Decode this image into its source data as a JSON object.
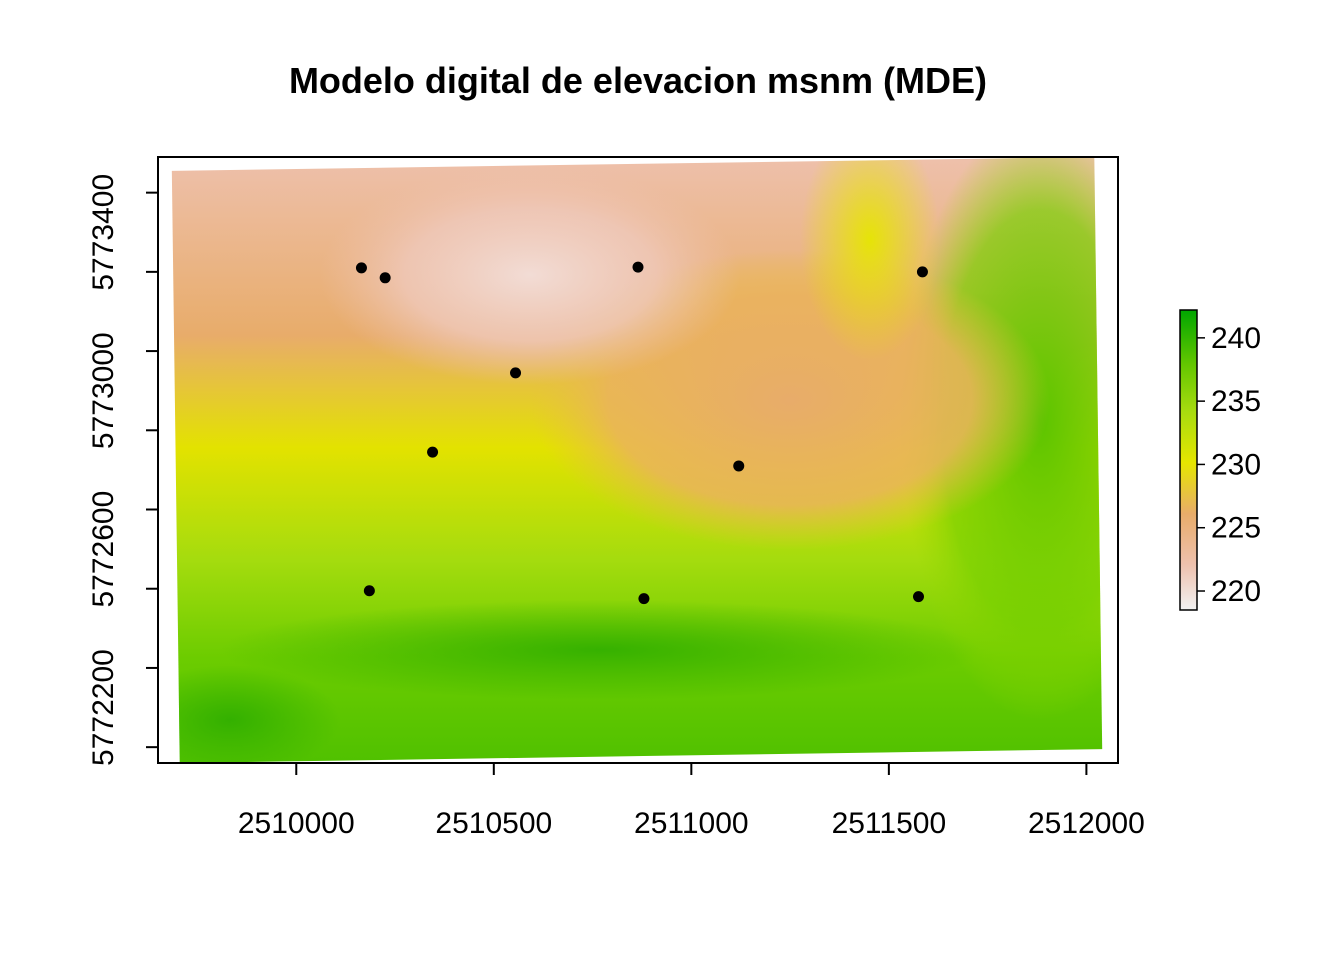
{
  "chart_data": {
    "type": "heatmap",
    "title": "Modelo digital de elevacion msnm (MDE)",
    "xlabel": "",
    "ylabel": "",
    "x_ticks": [
      2510000,
      2510500,
      2511000,
      2511500,
      2512000
    ],
    "y_ticks": [
      5772200,
      5772600,
      5773000,
      5773400
    ],
    "xlim": [
      2509650,
      2512080
    ],
    "ylim": [
      5772060,
      5773590
    ],
    "raster_extent": {
      "corners": [
        {
          "x": 2509685,
          "y": 5773555
        },
        {
          "x": 2512020,
          "y": 5773590
        },
        {
          "x": 2512040,
          "y": 5772095
        },
        {
          "x": 2509705,
          "y": 5772060
        }
      ]
    },
    "color_scale": {
      "label": "",
      "min": 218.5,
      "max": 242.2,
      "ticks": [
        220,
        225,
        230,
        235,
        240
      ],
      "stops": [
        {
          "value": 218.5,
          "color": "#f2f2f2"
        },
        {
          "value": 222,
          "color": "#eec1ae"
        },
        {
          "value": 226,
          "color": "#e8ac6a"
        },
        {
          "value": 230,
          "color": "#e6e600"
        },
        {
          "value": 234,
          "color": "#a8dc0f"
        },
        {
          "value": 238,
          "color": "#63c600"
        },
        {
          "value": 242.2,
          "color": "#00a600"
        }
      ]
    },
    "points": [
      {
        "x": 2510165,
        "y": 5773310
      },
      {
        "x": 2510225,
        "y": 5773285
      },
      {
        "x": 2510865,
        "y": 5773312
      },
      {
        "x": 2511585,
        "y": 5773300
      },
      {
        "x": 2510555,
        "y": 5773045
      },
      {
        "x": 2510345,
        "y": 5772845
      },
      {
        "x": 2511120,
        "y": 5772810
      },
      {
        "x": 2510185,
        "y": 5772495
      },
      {
        "x": 2510880,
        "y": 5772475
      },
      {
        "x": 2511575,
        "y": 5772480
      }
    ],
    "point_color": "#000000",
    "grid": false,
    "legend_position": "right"
  }
}
